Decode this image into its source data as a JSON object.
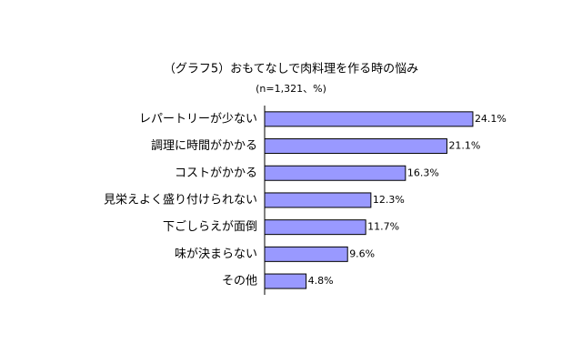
{
  "chart_data": {
    "type": "bar",
    "orientation": "horizontal",
    "title": "（グラフ5）おもてなしで肉料理を作る時の悩み",
    "subtitle": "(n=1,321、%)",
    "categories": [
      "レパートリーが少ない",
      "調理に時間がかかる",
      "コストがかかる",
      "見栄えよく盛り付けられない",
      "下ごしらえが面倒",
      "味が決まらない",
      "その他"
    ],
    "values": [
      24.1,
      21.1,
      16.3,
      12.3,
      11.7,
      9.6,
      4.8
    ],
    "value_labels": [
      "24.1%",
      "21.1%",
      "16.3%",
      "12.3%",
      "11.7%",
      "9.6%",
      "4.8%"
    ],
    "color": "#9999ff"
  }
}
